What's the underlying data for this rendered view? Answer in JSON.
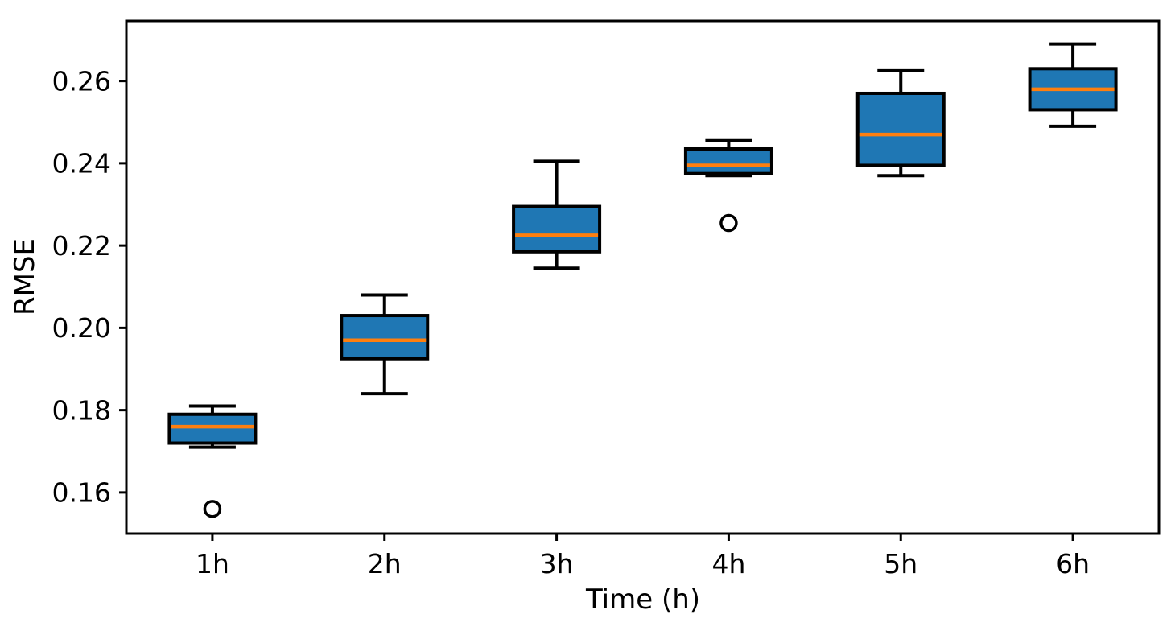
{
  "chart_data": {
    "type": "boxplot",
    "title": "",
    "xlabel": "Time (h)",
    "ylabel": "RMSE",
    "categories": [
      "1h",
      "2h",
      "3h",
      "4h",
      "5h",
      "6h"
    ],
    "boxes": [
      {
        "label": "1h",
        "whislo": 0.171,
        "q1": 0.172,
        "med": 0.176,
        "q3": 0.179,
        "whishi": 0.181,
        "outliers": [
          0.156
        ]
      },
      {
        "label": "2h",
        "whislo": 0.184,
        "q1": 0.1925,
        "med": 0.197,
        "q3": 0.203,
        "whishi": 0.208,
        "outliers": []
      },
      {
        "label": "3h",
        "whislo": 0.2145,
        "q1": 0.2185,
        "med": 0.2225,
        "q3": 0.2295,
        "whishi": 0.2405,
        "outliers": []
      },
      {
        "label": "4h",
        "whislo": 0.237,
        "q1": 0.2375,
        "med": 0.2395,
        "q3": 0.2435,
        "whishi": 0.2455,
        "outliers": [
          0.2255
        ]
      },
      {
        "label": "5h",
        "whislo": 0.237,
        "q1": 0.2395,
        "med": 0.247,
        "q3": 0.257,
        "whishi": 0.2625,
        "outliers": []
      },
      {
        "label": "6h",
        "whislo": 0.249,
        "q1": 0.253,
        "med": 0.258,
        "q3": 0.263,
        "whishi": 0.269,
        "outliers": []
      }
    ],
    "yticks": [
      0.16,
      0.18,
      0.2,
      0.22,
      0.24,
      0.26
    ],
    "ytick_labels": [
      "0.16",
      "0.18",
      "0.20",
      "0.22",
      "0.24",
      "0.26"
    ],
    "ylim": [
      0.15,
      0.2746
    ],
    "grid": false,
    "legend": null,
    "colors": {
      "box_fill": "#1f77b4",
      "median": "#ff7f0e",
      "line": "#000000",
      "background": "#ffffff"
    }
  }
}
